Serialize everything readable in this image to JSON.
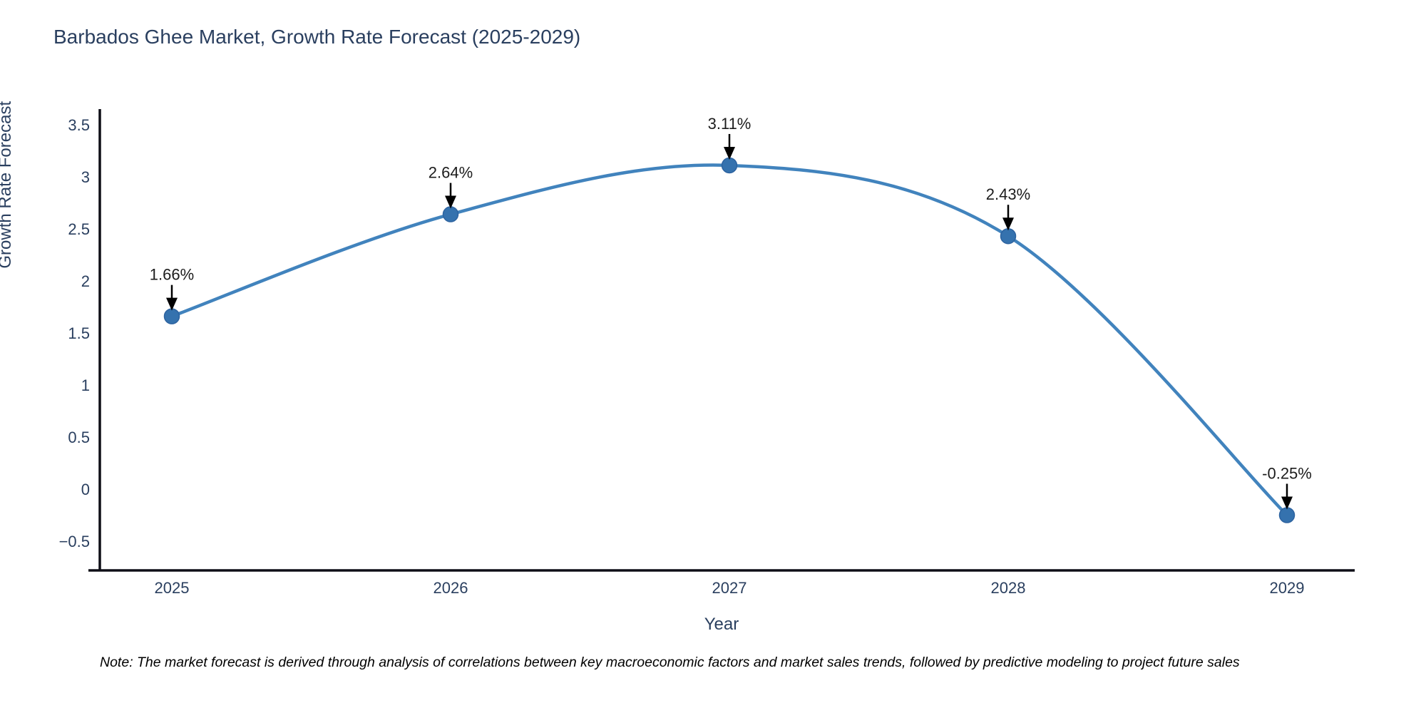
{
  "title": "Barbados Ghee Market, Growth Rate Forecast (2025-2029)",
  "note": "Note: The market forecast is derived through analysis of correlations between key macroeconomic factors and market sales trends, followed by predictive modeling to project future sales",
  "chart_data": {
    "type": "line",
    "title": "Barbados Ghee Market, Growth Rate Forecast (2025-2029)",
    "xlabel": "Year",
    "ylabel": "Growth Rate Forecast",
    "x": [
      2025,
      2026,
      2027,
      2028,
      2029
    ],
    "series": [
      {
        "name": "Growth Rate Forecast",
        "values": [
          1.66,
          2.64,
          3.11,
          2.43,
          -0.25
        ],
        "point_labels": [
          "1.66%",
          "2.64%",
          "3.11%",
          "2.43%",
          "-0.25%"
        ]
      }
    ],
    "xtick_labels": [
      "2025",
      "2026",
      "2027",
      "2028",
      "2029"
    ],
    "ytick_values": [
      -0.5,
      0,
      0.5,
      1,
      1.5,
      2,
      2.5,
      3,
      3.5
    ],
    "ytick_labels": [
      "−0.5",
      "0",
      "0.5",
      "1",
      "1.5",
      "2",
      "2.5",
      "3",
      "3.5"
    ],
    "ylim": [
      -0.78,
      3.65
    ],
    "grid": false,
    "legend": "none",
    "line_shape": "spline",
    "annotations_have_arrows": true,
    "colors": {
      "line": "#4183bd",
      "marker": "#3572ae",
      "marker_edge": "#2d63a0",
      "arrow": "#000000",
      "axis_line": "#0e0e16",
      "title_text": "#2a3f5f",
      "tick_text": "#2a3f5f",
      "annotation_text": "#1c1c1c",
      "background": "#ffffff"
    }
  }
}
